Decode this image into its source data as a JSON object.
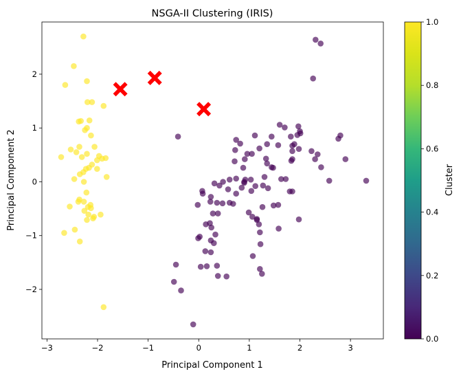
{
  "chart_data": {
    "type": "scatter",
    "title": "NSGA-II Clustering (IRIS)",
    "xlabel": "Principal Component 1",
    "ylabel": "Principal Component 2",
    "xlim": [
      -3.1,
      3.65
    ],
    "ylim": [
      -2.92,
      2.97
    ],
    "xticks": [
      -3,
      -2,
      -1,
      0,
      1,
      2,
      3
    ],
    "yticks": [
      -2,
      -1,
      0,
      1,
      2
    ],
    "grid": false,
    "point_alpha": 0.65,
    "colormap": "viridis",
    "colorbar": {
      "label": "Cluster",
      "range": [
        0.0,
        1.0
      ],
      "ticks": [
        "0.0",
        "0.2",
        "0.4",
        "0.6",
        "0.8",
        "1.0"
      ]
    },
    "series": [
      {
        "cluster": 1,
        "color": "#fde725",
        "points": [
          [
            -2.28,
            2.7
          ],
          [
            -2.47,
            2.15
          ],
          [
            -2.64,
            1.8
          ],
          [
            -2.21,
            1.87
          ],
          [
            -2.2,
            1.48
          ],
          [
            -2.11,
            1.48
          ],
          [
            -1.88,
            1.41
          ],
          [
            -2.37,
            1.12
          ],
          [
            -2.33,
            1.13
          ],
          [
            -2.16,
            1.14
          ],
          [
            -2.21,
            1.0
          ],
          [
            -2.25,
            0.96
          ],
          [
            -2.13,
            0.86
          ],
          [
            -2.72,
            0.46
          ],
          [
            -2.36,
            0.65
          ],
          [
            -2.06,
            0.65
          ],
          [
            -2.53,
            0.6
          ],
          [
            -2.42,
            0.55
          ],
          [
            -1.97,
            0.48
          ],
          [
            -2.21,
            0.52
          ],
          [
            -1.91,
            0.43
          ],
          [
            -2.01,
            0.4
          ],
          [
            -1.84,
            0.44
          ],
          [
            -2.31,
            0.46
          ],
          [
            -2.11,
            0.32
          ],
          [
            -2.17,
            0.26
          ],
          [
            -2.28,
            0.18
          ],
          [
            -2.01,
            0.24
          ],
          [
            -2.23,
            0.24
          ],
          [
            -2.35,
            0.14
          ],
          [
            -1.82,
            0.09
          ],
          [
            -2.46,
            0.05
          ],
          [
            -2.27,
            0.0
          ],
          [
            -2.22,
            -0.2
          ],
          [
            -2.36,
            -0.33
          ],
          [
            -2.27,
            -0.37
          ],
          [
            -2.38,
            -0.37
          ],
          [
            -2.14,
            -0.43
          ],
          [
            -2.19,
            -0.47
          ],
          [
            -2.55,
            -0.46
          ],
          [
            -2.26,
            -0.54
          ],
          [
            -2.13,
            -0.49
          ],
          [
            -1.94,
            -0.61
          ],
          [
            -2.18,
            -0.61
          ],
          [
            -2.07,
            -0.65
          ],
          [
            -2.21,
            -0.71
          ],
          [
            -2.09,
            -0.68
          ],
          [
            -2.45,
            -0.89
          ],
          [
            -2.66,
            -0.95
          ],
          [
            -2.35,
            -1.11
          ],
          [
            -1.88,
            -2.33
          ]
        ]
      },
      {
        "cluster": 0,
        "color": "#440154",
        "points": [
          [
            2.31,
            2.64
          ],
          [
            2.41,
            2.57
          ],
          [
            2.26,
            1.92
          ],
          [
            1.6,
            1.06
          ],
          [
            1.97,
            1.03
          ],
          [
            1.7,
            1.01
          ],
          [
            2.0,
            0.94
          ],
          [
            2.01,
            0.9
          ],
          [
            1.95,
            0.87
          ],
          [
            2.8,
            0.86
          ],
          [
            2.76,
            0.8
          ],
          [
            0.74,
            0.78
          ],
          [
            1.11,
            0.86
          ],
          [
            1.44,
            0.84
          ],
          [
            1.82,
            0.84
          ],
          [
            -0.41,
            0.84
          ],
          [
            0.82,
            0.71
          ],
          [
            1.2,
            0.62
          ],
          [
            1.35,
            0.7
          ],
          [
            1.57,
            0.68
          ],
          [
            1.89,
            0.7
          ],
          [
            1.85,
            0.67
          ],
          [
            1.98,
            0.61
          ],
          [
            2.23,
            0.57
          ],
          [
            2.35,
            0.51
          ],
          [
            1.85,
            0.57
          ],
          [
            0.72,
            0.59
          ],
          [
            0.96,
            0.52
          ],
          [
            1.05,
            0.52
          ],
          [
            0.91,
            0.42
          ],
          [
            1.33,
            0.43
          ],
          [
            1.85,
            0.42
          ],
          [
            1.83,
            0.39
          ],
          [
            2.3,
            0.42
          ],
          [
            2.9,
            0.42
          ],
          [
            1.44,
            0.27
          ],
          [
            1.47,
            0.26
          ],
          [
            0.71,
            0.38
          ],
          [
            1.35,
            0.34
          ],
          [
            2.42,
            0.27
          ],
          [
            0.88,
            0.26
          ],
          [
            1.3,
            0.09
          ],
          [
            1.63,
            0.05
          ],
          [
            1.72,
            0.05
          ],
          [
            2.58,
            0.02
          ],
          [
            3.31,
            0.02
          ],
          [
            0.61,
            0.04
          ],
          [
            0.74,
            0.06
          ],
          [
            0.48,
            0.0
          ],
          [
            0.92,
            0.04
          ],
          [
            0.9,
            0.0
          ],
          [
            0.9,
            -0.02
          ],
          [
            1.03,
            0.04
          ],
          [
            0.31,
            -0.03
          ],
          [
            0.41,
            -0.07
          ],
          [
            0.85,
            -0.11
          ],
          [
            0.58,
            -0.14
          ],
          [
            0.74,
            -0.22
          ],
          [
            1.12,
            -0.08
          ],
          [
            1.27,
            -0.07
          ],
          [
            1.37,
            -0.12
          ],
          [
            1.04,
            -0.17
          ],
          [
            1.8,
            -0.18
          ],
          [
            1.85,
            -0.18
          ],
          [
            0.07,
            -0.17
          ],
          [
            0.08,
            -0.22
          ],
          [
            0.24,
            -0.28
          ],
          [
            0.23,
            -0.37
          ],
          [
            0.36,
            -0.39
          ],
          [
            0.47,
            -0.4
          ],
          [
            0.61,
            -0.39
          ],
          [
            0.68,
            -0.41
          ],
          [
            1.26,
            -0.47
          ],
          [
            1.48,
            -0.44
          ],
          [
            1.57,
            -0.43
          ],
          [
            -0.02,
            -0.43
          ],
          [
            0.28,
            -0.59
          ],
          [
            0.38,
            -0.59
          ],
          [
            0.99,
            -0.57
          ],
          [
            1.06,
            -0.65
          ],
          [
            1.15,
            -0.69
          ],
          [
            1.15,
            -0.71
          ],
          [
            1.19,
            -0.79
          ],
          [
            1.98,
            -0.7
          ],
          [
            0.14,
            -0.79
          ],
          [
            0.22,
            -0.77
          ],
          [
            0.25,
            -0.85
          ],
          [
            1.58,
            -0.87
          ],
          [
            0.33,
            -0.98
          ],
          [
            1.21,
            -0.94
          ],
          [
            0.02,
            -1.02
          ],
          [
            -0.01,
            -1.05
          ],
          [
            0.24,
            -1.09
          ],
          [
            0.3,
            -1.14
          ],
          [
            1.22,
            -1.16
          ],
          [
            0.13,
            -1.29
          ],
          [
            0.24,
            -1.31
          ],
          [
            1.07,
            -1.38
          ],
          [
            0.36,
            -1.56
          ],
          [
            0.16,
            -1.57
          ],
          [
            0.04,
            -1.58
          ],
          [
            -0.45,
            -1.54
          ],
          [
            1.21,
            -1.62
          ],
          [
            1.25,
            -1.71
          ],
          [
            0.38,
            -1.75
          ],
          [
            0.55,
            -1.76
          ],
          [
            -0.49,
            -1.86
          ],
          [
            -0.35,
            -2.02
          ],
          [
            -0.11,
            -2.65
          ]
        ]
      }
    ],
    "centroids": {
      "color": "#ff0000",
      "marker": "X",
      "points": [
        [
          -1.55,
          1.72
        ],
        [
          -0.87,
          1.93
        ],
        [
          0.1,
          1.35
        ]
      ]
    }
  }
}
